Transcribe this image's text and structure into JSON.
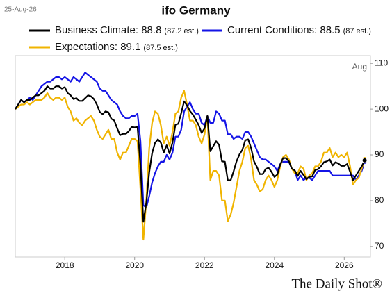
{
  "date_label": "25-Aug-26",
  "footer": "The Daily Shot®",
  "chart_data": {
    "type": "line",
    "title": "ifo Germany",
    "annotation": "Aug",
    "x": [
      "2016-08",
      "2016-09",
      "2016-10",
      "2016-11",
      "2016-12",
      "2017-01",
      "2017-02",
      "2017-03",
      "2017-04",
      "2017-05",
      "2017-06",
      "2017-07",
      "2017-08",
      "2017-09",
      "2017-10",
      "2017-11",
      "2017-12",
      "2018-01",
      "2018-02",
      "2018-03",
      "2018-04",
      "2018-05",
      "2018-06",
      "2018-07",
      "2018-08",
      "2018-09",
      "2018-10",
      "2018-11",
      "2018-12",
      "2019-01",
      "2019-02",
      "2019-03",
      "2019-04",
      "2019-05",
      "2019-06",
      "2019-07",
      "2019-08",
      "2019-09",
      "2019-10",
      "2019-11",
      "2019-12",
      "2020-01",
      "2020-02",
      "2020-03",
      "2020-04",
      "2020-05",
      "2020-06",
      "2020-07",
      "2020-08",
      "2020-09",
      "2020-10",
      "2020-11",
      "2020-12",
      "2021-01",
      "2021-02",
      "2021-03",
      "2021-04",
      "2021-05",
      "2021-06",
      "2021-07",
      "2021-08",
      "2021-09",
      "2021-10",
      "2021-11",
      "2021-12",
      "2022-01",
      "2022-02",
      "2022-03",
      "2022-04",
      "2022-05",
      "2022-06",
      "2022-07",
      "2022-08",
      "2022-09",
      "2022-10",
      "2022-11",
      "2022-12",
      "2023-01",
      "2023-02",
      "2023-03",
      "2023-04",
      "2023-05",
      "2023-06",
      "2023-07",
      "2023-08",
      "2023-09",
      "2023-10",
      "2023-11",
      "2023-12",
      "2024-01",
      "2024-02",
      "2024-03",
      "2024-04",
      "2024-05",
      "2024-06",
      "2024-07",
      "2024-08",
      "2024-09",
      "2024-10",
      "2024-11",
      "2024-12",
      "2025-01",
      "2025-02",
      "2025-03",
      "2025-04",
      "2025-05",
      "2025-06",
      "2025-07",
      "2025-08",
      "2025-09",
      "2025-10",
      "2025-11",
      "2025-12",
      "2026-01",
      "2026-02",
      "2026-03",
      "2026-04",
      "2026-05",
      "2026-06",
      "2026-07",
      "2026-08"
    ],
    "series": [
      {
        "name": "Business Climate: 88.8",
        "estimate": "(87.2 est.)",
        "color": "#000000",
        "values": [
          100,
          101,
          102,
          101.5,
          102,
          102,
          102.5,
          103,
          103,
          103.5,
          104,
          105,
          104.5,
          104.5,
          105,
          105,
          104.5,
          104.8,
          103.5,
          103,
          102.2,
          102.4,
          101.8,
          101.8,
          102.4,
          103,
          102.8,
          102.2,
          101,
          99.4,
          98.9,
          99.5,
          99.3,
          97.9,
          97.5,
          95.8,
          94.3,
          94.6,
          94.6,
          95.2,
          96.1,
          96,
          96.1,
          87.7,
          75.4,
          79.5,
          86.2,
          90.4,
          92.6,
          93.4,
          92.7,
          90.5,
          92.1,
          90.3,
          92.7,
          96.6,
          96.8,
          99.1,
          101.7,
          100.8,
          99.6,
          98.8,
          97.7,
          96.5,
          94.8,
          95.8,
          98.5,
          90.8,
          91.9,
          93,
          92.2,
          88.6,
          88.5,
          84.4,
          84.5,
          86.4,
          88.6,
          90.1,
          91.1,
          93.2,
          93.4,
          91.5,
          88.6,
          87.4,
          85.8,
          85.8,
          86.9,
          87.2,
          86.3,
          85.2,
          85.7,
          87.9,
          89.3,
          89.3,
          88.6,
          87,
          86.6,
          85.4,
          86.5,
          85.6,
          84.7,
          85.2,
          85.3,
          86.7,
          86.9,
          87.5,
          88.4,
          88.6,
          89,
          87.7,
          88.4,
          88.1,
          87.6,
          87.6,
          88,
          86.3,
          84.5,
          85.5,
          86.5,
          87.5,
          88.8
        ]
      },
      {
        "name": "Current Conditions: 88.5",
        "estimate": "(87 est.)",
        "color": "#1414e6",
        "values": [
          100,
          101,
          102,
          101.5,
          102,
          102.5,
          102,
          103,
          104,
          105,
          105.5,
          106,
          106,
          106.5,
          107,
          107,
          106.5,
          107,
          106.5,
          106,
          107,
          106.5,
          106,
          107,
          108,
          107.5,
          107,
          106.5,
          106,
          104.5,
          104,
          104,
          103,
          102,
          101.5,
          101,
          99.5,
          98.5,
          98,
          98,
          98.5,
          98.5,
          99,
          93,
          79,
          78.5,
          81,
          84,
          86,
          87.5,
          88.5,
          88.5,
          90,
          89,
          90.5,
          94,
          94,
          95.5,
          99.5,
          100.5,
          101.5,
          100,
          99,
          99,
          97,
          96.5,
          98.5,
          97,
          97,
          99.5,
          99,
          97.5,
          97.5,
          94.5,
          94.5,
          93.5,
          94,
          94,
          93.5,
          95,
          95,
          94,
          92.5,
          91,
          89.5,
          89,
          89,
          88.5,
          88,
          87.5,
          86.5,
          88,
          88.5,
          88.5,
          88.5,
          87,
          86.5,
          84.5,
          85.5,
          84.5,
          85,
          85,
          84.5,
          85.5,
          86.5,
          86.5,
          86.5,
          86.5,
          86.5,
          85.5,
          85.5,
          85.5,
          85.5,
          85.5,
          85.5,
          85.5,
          85.5,
          84.5,
          85.5,
          86.5,
          88.5
        ]
      },
      {
        "name": "Expectations: 89.1",
        "estimate": "(87.5 est.)",
        "color": "#f0b400",
        "values": [
          100,
          100.5,
          101,
          101,
          101.5,
          101,
          101.5,
          102,
          102,
          102,
          102.5,
          103.5,
          102.5,
          102,
          102.5,
          102.5,
          102,
          102.5,
          100.5,
          99.5,
          97.5,
          98,
          97,
          96.5,
          97.5,
          98,
          98.5,
          97.5,
          95.5,
          94,
          93.5,
          94.5,
          95.5,
          93.5,
          93.5,
          90.5,
          89,
          90.5,
          90.5,
          92,
          93.5,
          93.5,
          93,
          82.5,
          71.5,
          80,
          91.5,
          97,
          99.5,
          99,
          96.5,
          92.5,
          94,
          92,
          95,
          99,
          99.5,
          102.5,
          104,
          101,
          97.5,
          97.5,
          96.5,
          94,
          92.5,
          94.5,
          98.5,
          84.5,
          86.5,
          86.5,
          85.5,
          80,
          80,
          75.5,
          77,
          79.5,
          83,
          86.5,
          88.5,
          91.5,
          92,
          89,
          84.5,
          83.5,
          82,
          82.5,
          84.5,
          85.5,
          84.5,
          83,
          84.5,
          87.5,
          89.5,
          90,
          89,
          87,
          86,
          86,
          87.5,
          87,
          84.5,
          85.5,
          86,
          87.5,
          87.5,
          88.5,
          90.5,
          90.5,
          91.5,
          89.5,
          90.5,
          89.5,
          90,
          89.5,
          90.5,
          87.5,
          83.5,
          84.5,
          85,
          87,
          89.1
        ]
      }
    ],
    "xlim": [
      "2016-08",
      "2026-10"
    ],
    "xticks": [
      {
        "value": "2018-01",
        "label": "2018"
      },
      {
        "value": "2020-01",
        "label": "2020"
      },
      {
        "value": "2022-01",
        "label": "2022"
      },
      {
        "value": "2024-01",
        "label": "2024"
      },
      {
        "value": "2026-01",
        "label": "2026"
      }
    ],
    "ylim": [
      67.7,
      111.7
    ],
    "yticks": [
      70,
      80,
      90,
      100,
      110
    ],
    "grid": false
  }
}
